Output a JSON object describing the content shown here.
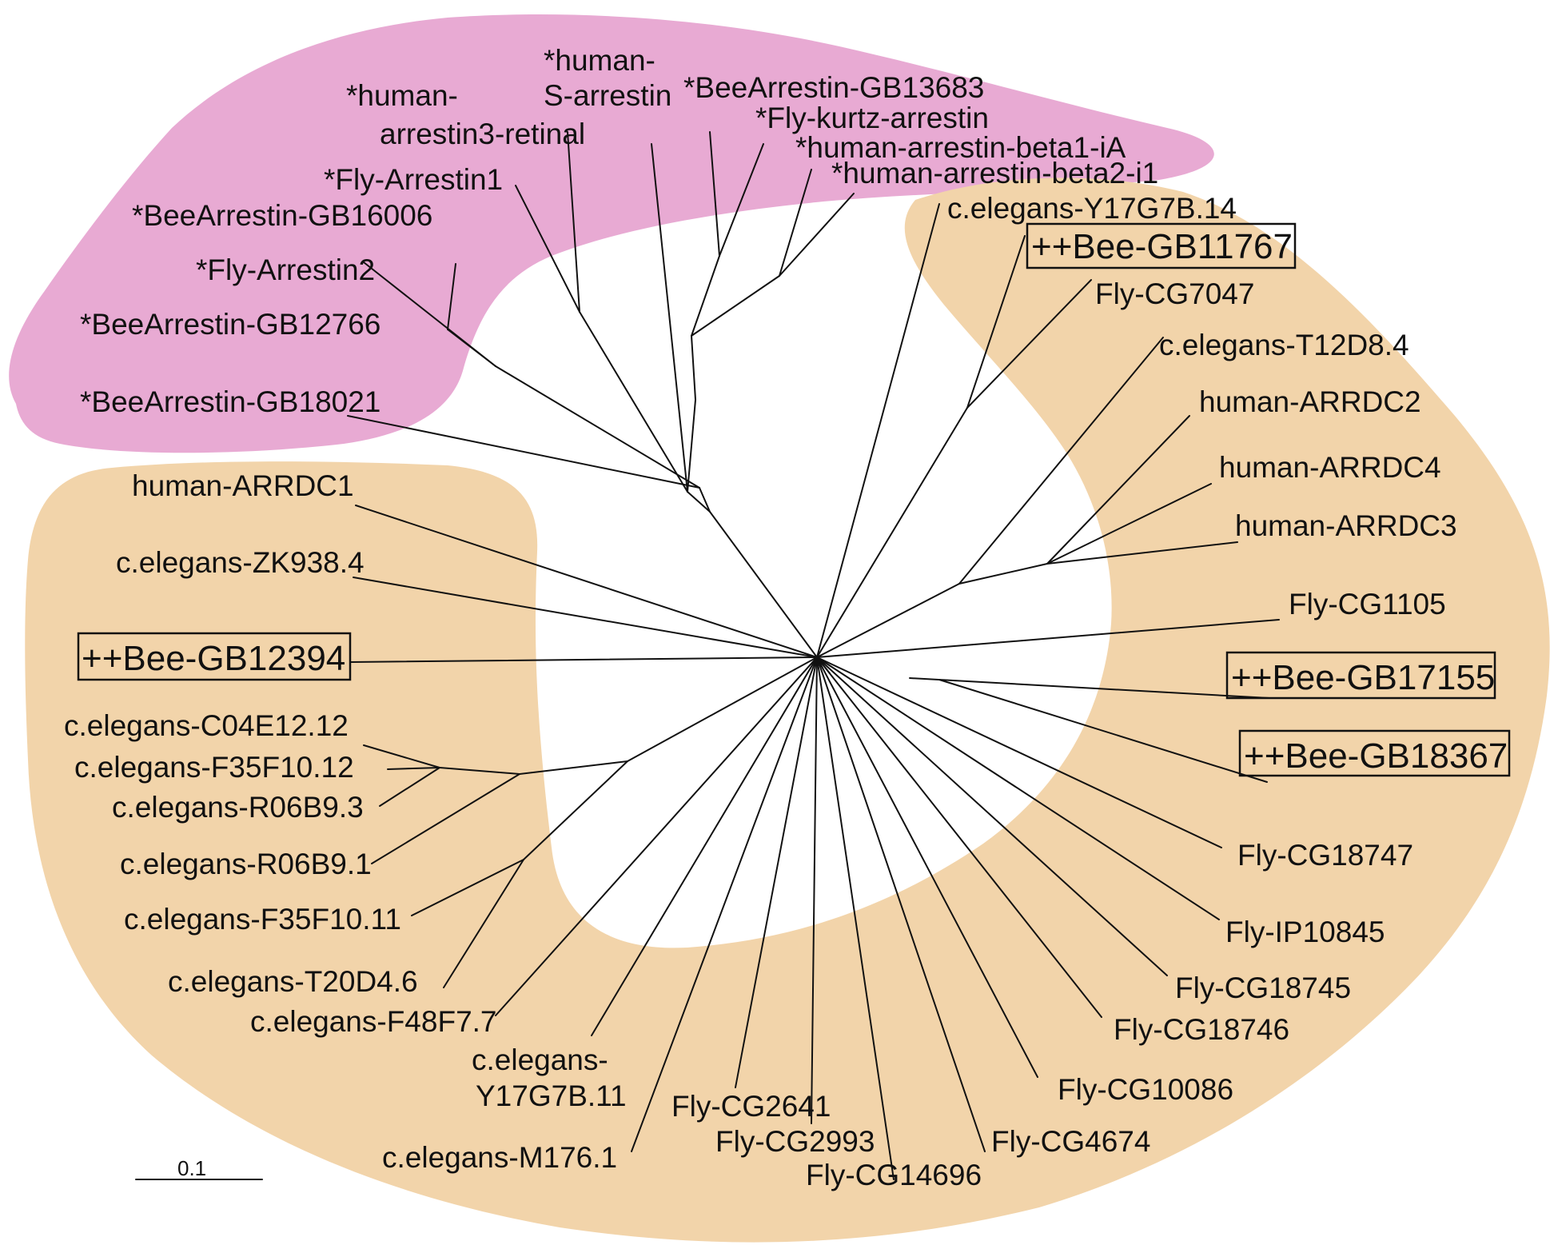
{
  "colors": {
    "arrestin_region": "#e8aad3",
    "alpha_arrestin_region": "#f2d4aa",
    "line": "#111111",
    "background": "#ffffff"
  },
  "scale_bar": {
    "label": "0.1"
  },
  "leaves": {
    "bee_gb18021": "*BeeArrestin-GB18021",
    "bee_gb12766": "*BeeArrestin-GB12766",
    "fly_arrestin2": "*Fly-Arrestin2",
    "bee_gb16006": "*BeeArrestin-GB16006",
    "fly_arrestin1": "*Fly-Arrestin1",
    "human_arrestin3_l1": "*human-",
    "human_arrestin3_l2": "arrestin3-retinal",
    "human_s_arrestin_l1": "*human-",
    "human_s_arrestin_l2": "S-arrestin",
    "bee_gb13683": "*BeeArrestin-GB13683",
    "fly_kurtz": "*Fly-kurtz-arrestin",
    "human_beta1": "*human-arrestin-beta1-iA",
    "human_beta2": "*human-arrestin-beta2-i1",
    "ce_y17g7b14": "c.elegans-Y17G7B.14",
    "bee_gb11767": "++Bee-GB11767",
    "fly_cg7047": "Fly-CG7047",
    "ce_t12d84": "c.elegans-T12D8.4",
    "human_arrdc2": "human-ARRDC2",
    "human_arrdc4": "human-ARRDC4",
    "human_arrdc3": "human-ARRDC3",
    "fly_cg1105": "Fly-CG1105",
    "bee_gb17155": "++Bee-GB17155",
    "bee_gb18367": "++Bee-GB18367",
    "fly_cg18747": "Fly-CG18747",
    "fly_ip10845": "Fly-IP10845",
    "fly_cg18745": "Fly-CG18745",
    "fly_cg18746": "Fly-CG18746",
    "fly_cg10086": "Fly-CG10086",
    "fly_cg4674": "Fly-CG4674",
    "fly_cg14696": "Fly-CG14696",
    "fly_cg2993": "Fly-CG2993",
    "fly_cg2641": "Fly-CG2641",
    "ce_m1761": "c.elegans-M176.1",
    "ce_y17g7b11_l1": "c.elegans-",
    "ce_y17g7b11_l2": "Y17G7B.11",
    "ce_f48f77": "c.elegans-F48F7.7",
    "ce_t20d46": "c.elegans-T20D4.6",
    "ce_f35f1011": "c.elegans-F35F10.11",
    "ce_r06b91": "c.elegans-R06B9.1",
    "ce_r06b93": "c.elegans-R06B9.3",
    "ce_f35f1012": "c.elegans-F35F10.12",
    "ce_c04e1212": "c.elegans-C04E12.12",
    "bee_gb12394": "++Bee-GB12394",
    "ce_zk9384": "c.elegans-ZK938.4",
    "human_arrdc1": "human-ARRDC1"
  }
}
